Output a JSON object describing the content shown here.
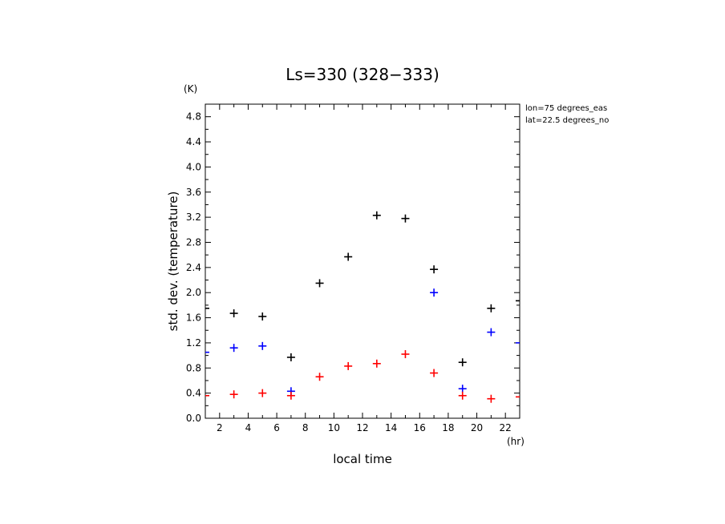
{
  "chart_data": {
    "type": "scatter",
    "title": "Ls=330 (328−333)",
    "xlabel": "local time",
    "ylabel": "std. dev. (temperature)",
    "x_unit": "(hr)",
    "y_unit": "(K)",
    "xlim": [
      1,
      23
    ],
    "ylim": [
      0,
      5.0
    ],
    "x_ticks": [
      "2",
      "4",
      "6",
      "8",
      "10",
      "12",
      "14",
      "16",
      "18",
      "20",
      "22"
    ],
    "y_ticks": [
      "0.0",
      "0.4",
      "0.8",
      "1.2",
      "1.6",
      "2.0",
      "2.4",
      "2.8",
      "3.2",
      "3.6",
      "4.0",
      "4.4",
      "4.8"
    ],
    "annotations": [
      "lon=75 degrees_eas",
      "lat=22.5 degrees_no"
    ],
    "grid": false,
    "series": [
      {
        "color": "#000000",
        "points": [
          [
            1,
            1.75
          ],
          [
            3,
            1.67
          ],
          [
            5,
            1.62
          ],
          [
            7,
            0.97
          ],
          [
            9,
            2.15
          ],
          [
            11,
            2.57
          ],
          [
            13,
            3.23
          ],
          [
            15,
            3.18
          ],
          [
            17,
            2.37
          ],
          [
            19,
            0.89
          ],
          [
            21,
            1.75
          ],
          [
            23,
            1.87
          ]
        ]
      },
      {
        "color": "#0000ff",
        "points": [
          [
            1,
            1.05
          ],
          [
            3,
            1.12
          ],
          [
            5,
            1.15
          ],
          [
            7,
            0.43
          ],
          [
            17,
            2.0
          ],
          [
            19,
            0.47
          ],
          [
            21,
            1.37
          ],
          [
            23,
            1.2
          ]
        ]
      },
      {
        "color": "#ff0000",
        "points": [
          [
            1,
            0.36
          ],
          [
            3,
            0.38
          ],
          [
            5,
            0.4
          ],
          [
            7,
            0.36
          ],
          [
            9,
            0.66
          ],
          [
            11,
            0.83
          ],
          [
            13,
            0.87
          ],
          [
            15,
            1.02
          ],
          [
            17,
            0.72
          ],
          [
            19,
            0.36
          ],
          [
            21,
            0.31
          ],
          [
            23,
            0.34
          ]
        ]
      }
    ]
  }
}
